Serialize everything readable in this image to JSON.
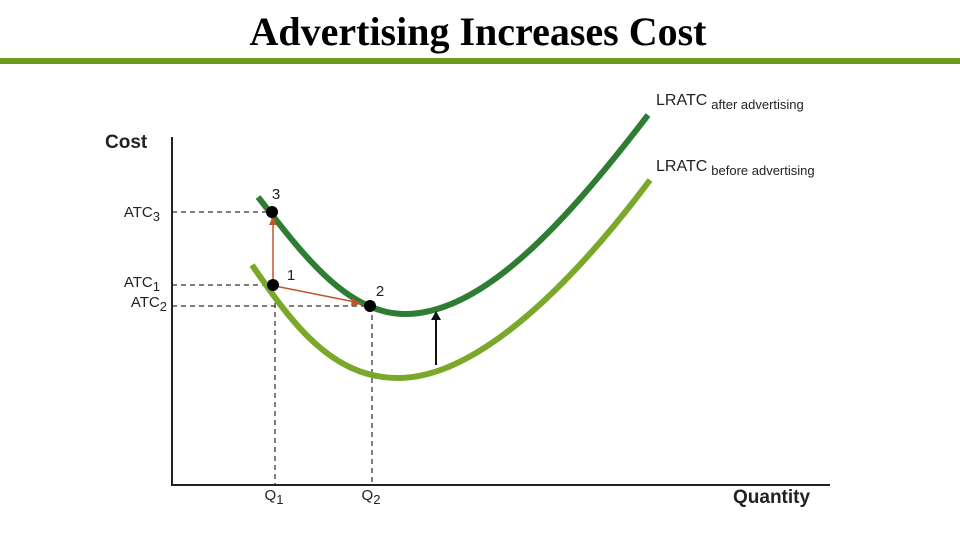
{
  "header": {
    "title": "Advertising Increases Cost"
  },
  "axes": {
    "y_label": "Cost",
    "x_label": "Quantity"
  },
  "y_levels": [
    {
      "base": "ATC",
      "sub": "3"
    },
    {
      "base": "ATC",
      "sub": "1"
    },
    {
      "base": "ATC",
      "sub": "2"
    }
  ],
  "x_levels": [
    {
      "base": "Q",
      "sub": "1"
    },
    {
      "base": "Q",
      "sub": "2"
    }
  ],
  "points": [
    "3",
    "1",
    "2"
  ],
  "curves": [
    {
      "base": "LRATC",
      "sub": "after advertising"
    },
    {
      "base": "LRATC",
      "sub": "before advertising"
    }
  ]
}
